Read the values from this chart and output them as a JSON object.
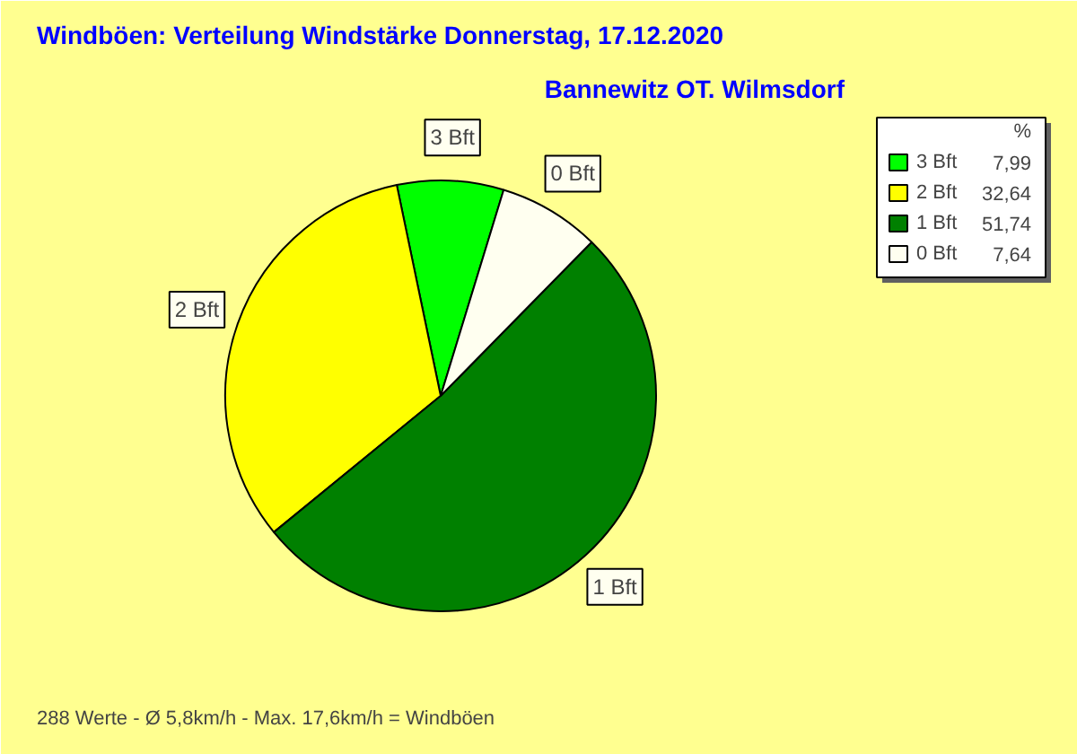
{
  "chart_data": {
    "type": "pie",
    "title": "Windböen: Verteilung Windstärke  Donnerstag, 17.12.2020",
    "subtitle": "Bannewitz OT. Wilmsdorf",
    "categories": [
      "3 Bft",
      "2 Bft",
      "1 Bft",
      "0 Bft"
    ],
    "values": [
      7.99,
      32.64,
      51.74,
      7.64
    ],
    "colors": [
      "#00ff00",
      "#ffff00",
      "#008000",
      "#fffff0"
    ],
    "value_labels": [
      "7,99",
      "32,64",
      "51,74",
      "7,64"
    ],
    "legend": "top right",
    "legend_title": "%",
    "annotations": [
      "288 Werte   -   Ø 5,8km/h   -   Max. 17,6km/h = Windböen"
    ]
  }
}
